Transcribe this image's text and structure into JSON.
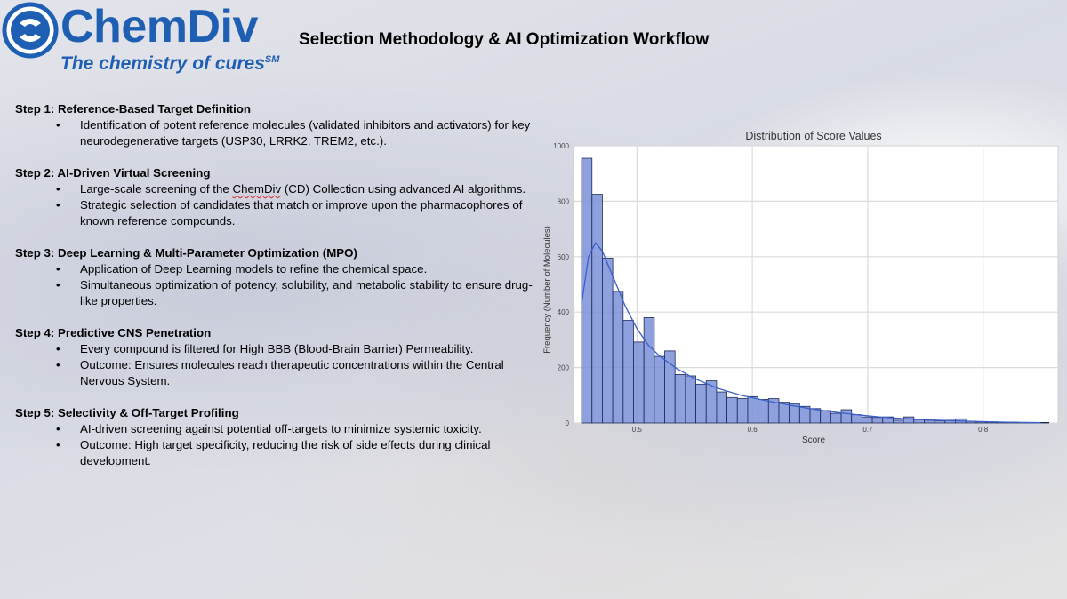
{
  "header": {
    "logo_name": "ChemDiv",
    "logo_tagline": "The chemistry of cures",
    "logo_tagline_mark": "SM",
    "title": "Selection Methodology & AI Optimization Workflow",
    "brand_color": "#1f5fb3"
  },
  "steps": [
    {
      "heading": "Step 1: Reference-Based Target Definition",
      "bullets": [
        "Identification of potent reference molecules (validated inhibitors and activators) for key neurodegenerative targets (USP30, LRRK2, TREM2, etc.)."
      ]
    },
    {
      "heading": "Step 2: AI-Driven Virtual Screening",
      "bullets": [
        "Large-scale screening of the ChemDiv (CD) Collection using advanced AI algorithms.",
        "Strategic selection of candidates that match or improve upon the pharmacophores of known reference compounds."
      ]
    },
    {
      "heading": "Step 3: Deep Learning & Multi-Parameter Optimization (MPO)",
      "bullets": [
        "Application of Deep Learning models to refine the chemical space.",
        "Simultaneous optimization of potency, solubility, and metabolic stability to ensure drug-like properties."
      ]
    },
    {
      "heading": "Step 4: Predictive CNS Penetration",
      "bullets": [
        "Every compound is filtered for High BBB (Blood-Brain Barrier) Permeability.",
        "Outcome: Ensures molecules reach therapeutic concentrations within the Central Nervous System."
      ]
    },
    {
      "heading": "Step 5: Selectivity & Off-Target Profiling",
      "bullets": [
        "AI-driven screening against potential off-targets to minimize systemic toxicity.",
        "Outcome: High target specificity, reducing the risk of side effects during clinical development."
      ]
    }
  ],
  "chart_data": {
    "type": "bar",
    "title": "Distribution of Score Values",
    "xlabel": "Score",
    "ylabel": "Frequency (Number of Molecules)",
    "xlim": [
      0.445,
      0.865
    ],
    "ylim": [
      0,
      1000
    ],
    "xticks": [
      "0.5",
      "0.6",
      "0.7",
      "0.8"
    ],
    "yticks": [
      "0",
      "200",
      "400",
      "600",
      "800",
      "1000"
    ],
    "grid": true,
    "bin_width": 0.009,
    "bin_starts": [
      0.452,
      0.461,
      0.47,
      0.479,
      0.488,
      0.497,
      0.506,
      0.515,
      0.524,
      0.533,
      0.542,
      0.551,
      0.56,
      0.569,
      0.578,
      0.587,
      0.596,
      0.605,
      0.614,
      0.623,
      0.632,
      0.641,
      0.65,
      0.659,
      0.668,
      0.677,
      0.686,
      0.695,
      0.704,
      0.713,
      0.722,
      0.731,
      0.74,
      0.749,
      0.758,
      0.767,
      0.776,
      0.785,
      0.794,
      0.803,
      0.812,
      0.821,
      0.83,
      0.839,
      0.848
    ],
    "values": [
      955,
      825,
      595,
      475,
      370,
      292,
      380,
      240,
      260,
      175,
      170,
      140,
      152,
      112,
      92,
      88,
      95,
      85,
      88,
      75,
      70,
      60,
      52,
      45,
      35,
      48,
      30,
      22,
      20,
      22,
      10,
      22,
      12,
      10,
      8,
      10,
      15,
      6,
      4,
      4,
      3,
      3,
      2,
      2,
      2
    ],
    "kde_x": [
      0.452,
      0.458,
      0.464,
      0.47,
      0.48,
      0.49,
      0.5,
      0.51,
      0.52,
      0.535,
      0.55,
      0.57,
      0.59,
      0.61,
      0.63,
      0.65,
      0.67,
      0.69,
      0.71,
      0.73,
      0.76,
      0.79,
      0.82,
      0.85
    ],
    "kde_y": [
      430,
      600,
      650,
      620,
      520,
      420,
      340,
      280,
      240,
      195,
      160,
      125,
      100,
      82,
      66,
      52,
      40,
      30,
      22,
      16,
      10,
      6,
      3,
      1
    ],
    "bar_color": "#7b8fd8",
    "kde_color": "#3a5fc8"
  }
}
